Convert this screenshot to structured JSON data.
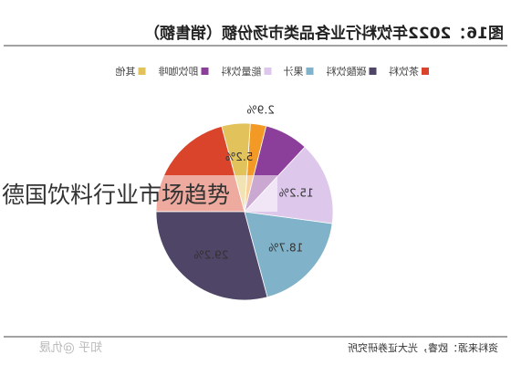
{
  "overlay_caption": "德国饮料行业市场趋势",
  "chart_data": {
    "type": "pie",
    "title": "图16：2022年饮料行业各品类市场份额（销售额）",
    "source": "资料来源：欧睿，光大证券研究所",
    "watermark": "知乎 @仇晟",
    "mirrored": true,
    "legend_position": "top",
    "slices": [
      {
        "name": "茶饮料",
        "value": 20.8,
        "label": "",
        "color": "#d9442b"
      },
      {
        "name": "碳酸饮料",
        "value": 29.2,
        "label": "29.2%",
        "color": "#4f4566"
      },
      {
        "name": "果汁",
        "value": 18.7,
        "label": "18.7%",
        "color": "#80b3c9"
      },
      {
        "name": "能量饮料",
        "value": 15.2,
        "label": "15.2%",
        "color": "#ddc8ec"
      },
      {
        "name": "即饮咖啡",
        "value": 8.0,
        "label": "",
        "color": "#8b3f9a"
      },
      {
        "name": "其他",
        "value": 2.9,
        "label": "2.9%",
        "color": "#f39a26"
      },
      {
        "name": "其他",
        "value": 5.2,
        "label": "5.2%",
        "color": "#e2c25a"
      }
    ]
  }
}
